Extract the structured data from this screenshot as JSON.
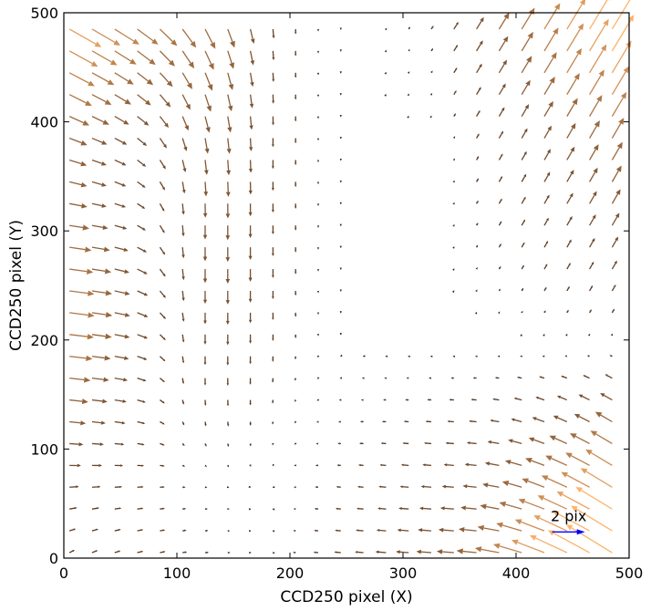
{
  "chart_data": {
    "type": "quiver",
    "title": "",
    "xlabel": "CCD250 pixel (X)",
    "ylabel": "CCD250 pixel (Y)",
    "xlim": [
      0,
      500
    ],
    "ylim": [
      0,
      500
    ],
    "xticks": [
      0,
      100,
      200,
      300,
      400,
      500
    ],
    "yticks": [
      0,
      100,
      200,
      300,
      400,
      500
    ],
    "grid": false,
    "color_scale": {
      "low": "#3b2314",
      "high": "#ffb36b"
    },
    "grid_x": [
      5,
      25,
      45,
      65,
      85,
      105,
      125,
      145,
      165,
      185,
      205,
      225,
      245,
      265,
      285,
      305,
      325,
      345,
      365,
      385,
      405,
      425,
      445,
      465,
      485
    ],
    "grid_y": [
      5,
      25,
      45,
      65,
      85,
      105,
      125,
      145,
      165,
      185,
      205,
      225,
      245,
      265,
      285,
      305,
      325,
      345,
      365,
      385,
      405,
      425,
      445,
      465,
      485
    ],
    "field_model": {
      "description_regions": [
        "top-left: down-right",
        "top-right: up-right",
        "left: right",
        "bottom-right: left",
        "bottom-left: small",
        "center: near zero"
      ],
      "typical_max_magnitude_pix": 2.6
    },
    "key": {
      "label": "2 pix",
      "length_pix": 2,
      "color": "#0000ff",
      "x": 432,
      "y": 24
    }
  }
}
